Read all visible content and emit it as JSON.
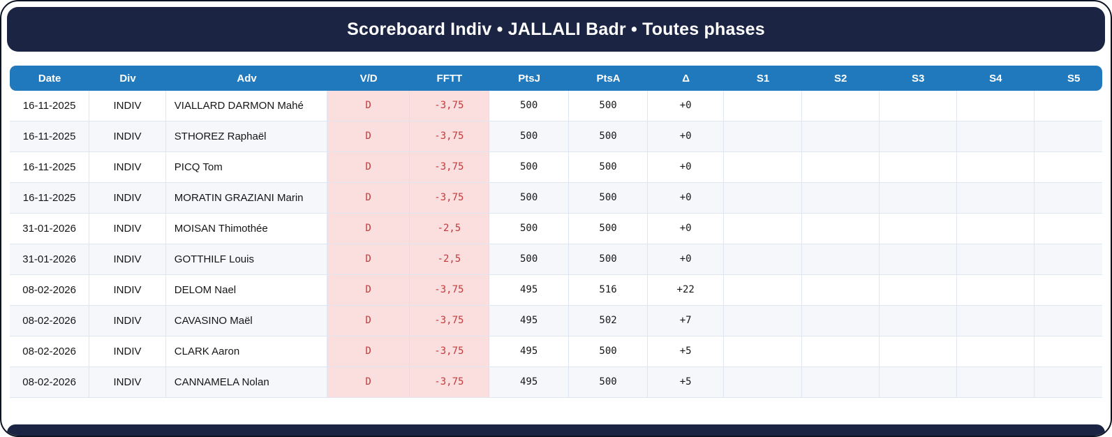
{
  "title": "Scoreboard Indiv • JALLALI Badr • Toutes phases",
  "colors": {
    "header_bar": "#1b2443",
    "table_header": "#2179bd",
    "loss_cell_background": "#fbdfdf",
    "loss_text": "#c43a3a",
    "row_alternate": "#f5f7fb"
  },
  "table": {
    "columns": [
      "Date",
      "Div",
      "Adv",
      "V/D",
      "FFTT",
      "PtsJ",
      "PtsA",
      "Δ",
      "S1",
      "S2",
      "S3",
      "S4",
      "S5"
    ],
    "rows": [
      {
        "date": "16-11-2025",
        "div": "INDIV",
        "adv": "VIALLARD DARMON Mahé",
        "vd": "D",
        "fftt": "-3,75",
        "ptsj": "500",
        "ptsa": "500",
        "delta": "+0",
        "s1": "",
        "s2": "",
        "s3": "",
        "s4": "",
        "s5": ""
      },
      {
        "date": "16-11-2025",
        "div": "INDIV",
        "adv": "STHOREZ Raphaël",
        "vd": "D",
        "fftt": "-3,75",
        "ptsj": "500",
        "ptsa": "500",
        "delta": "+0",
        "s1": "",
        "s2": "",
        "s3": "",
        "s4": "",
        "s5": ""
      },
      {
        "date": "16-11-2025",
        "div": "INDIV",
        "adv": "PICQ Tom",
        "vd": "D",
        "fftt": "-3,75",
        "ptsj": "500",
        "ptsa": "500",
        "delta": "+0",
        "s1": "",
        "s2": "",
        "s3": "",
        "s4": "",
        "s5": ""
      },
      {
        "date": "16-11-2025",
        "div": "INDIV",
        "adv": "MORATIN GRAZIANI Marin",
        "vd": "D",
        "fftt": "-3,75",
        "ptsj": "500",
        "ptsa": "500",
        "delta": "+0",
        "s1": "",
        "s2": "",
        "s3": "",
        "s4": "",
        "s5": ""
      },
      {
        "date": "31-01-2026",
        "div": "INDIV",
        "adv": "MOISAN Thimothée",
        "vd": "D",
        "fftt": "-2,5",
        "ptsj": "500",
        "ptsa": "500",
        "delta": "+0",
        "s1": "",
        "s2": "",
        "s3": "",
        "s4": "",
        "s5": ""
      },
      {
        "date": "31-01-2026",
        "div": "INDIV",
        "adv": "GOTTHILF Louis",
        "vd": "D",
        "fftt": "-2,5",
        "ptsj": "500",
        "ptsa": "500",
        "delta": "+0",
        "s1": "",
        "s2": "",
        "s3": "",
        "s4": "",
        "s5": ""
      },
      {
        "date": "08-02-2026",
        "div": "INDIV",
        "adv": "DELOM Nael",
        "vd": "D",
        "fftt": "-3,75",
        "ptsj": "495",
        "ptsa": "516",
        "delta": "+22",
        "s1": "",
        "s2": "",
        "s3": "",
        "s4": "",
        "s5": ""
      },
      {
        "date": "08-02-2026",
        "div": "INDIV",
        "adv": "CAVASINO Maël",
        "vd": "D",
        "fftt": "-3,75",
        "ptsj": "495",
        "ptsa": "502",
        "delta": "+7",
        "s1": "",
        "s2": "",
        "s3": "",
        "s4": "",
        "s5": ""
      },
      {
        "date": "08-02-2026",
        "div": "INDIV",
        "adv": "CLARK Aaron",
        "vd": "D",
        "fftt": "-3,75",
        "ptsj": "495",
        "ptsa": "500",
        "delta": "+5",
        "s1": "",
        "s2": "",
        "s3": "",
        "s4": "",
        "s5": ""
      },
      {
        "date": "08-02-2026",
        "div": "INDIV",
        "adv": "CANNAMELA Nolan",
        "vd": "D",
        "fftt": "-3,75",
        "ptsj": "495",
        "ptsa": "500",
        "delta": "+5",
        "s1": "",
        "s2": "",
        "s3": "",
        "s4": "",
        "s5": ""
      }
    ]
  }
}
